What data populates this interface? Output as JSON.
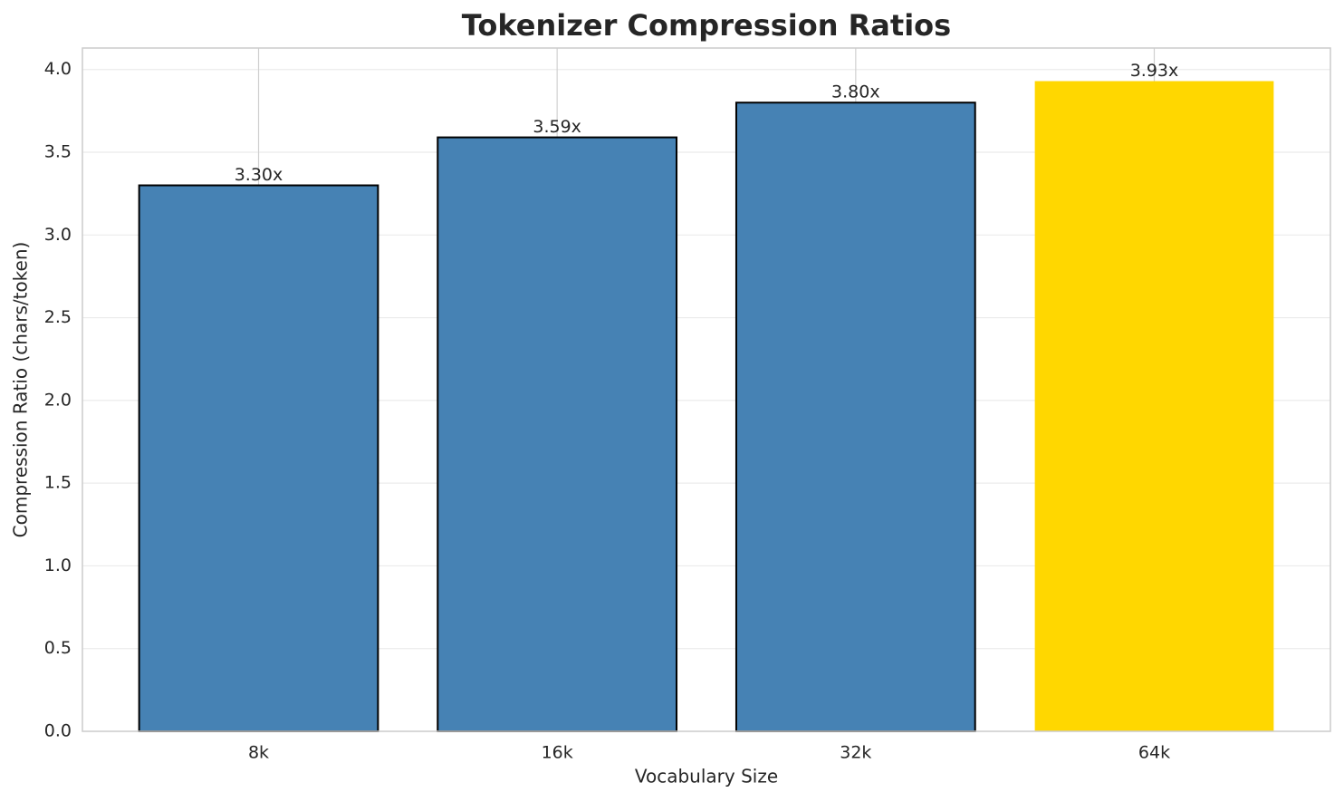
{
  "chart_data": {
    "type": "bar",
    "title": "Tokenizer Compression Ratios",
    "x_label": "Vocabulary Size",
    "y_label": "Compression Ratio (chars/token)",
    "categories": [
      "8k",
      "16k",
      "32k",
      "64k"
    ],
    "values": [
      3.3,
      3.59,
      3.8,
      3.93
    ],
    "value_labels": [
      "3.30x",
      "3.59x",
      "3.80x",
      "3.93x"
    ],
    "colors": [
      "#4682b4",
      "#4682b4",
      "#4682b4",
      "#ffd700"
    ],
    "edge_colors": [
      "#000000",
      "#000000",
      "#000000",
      "none"
    ],
    "ylim": [
      0,
      4.13
    ],
    "yticks": [
      {
        "value": 0,
        "label": "0.0"
      },
      0.5,
      {
        "value": 1,
        "label": "1.0"
      },
      1.5,
      {
        "value": 2,
        "label": "2.0"
      },
      2.5,
      {
        "value": 3,
        "label": "3.0"
      },
      3.5,
      {
        "value": 4,
        "label": "4.0"
      }
    ],
    "grid": true
  }
}
